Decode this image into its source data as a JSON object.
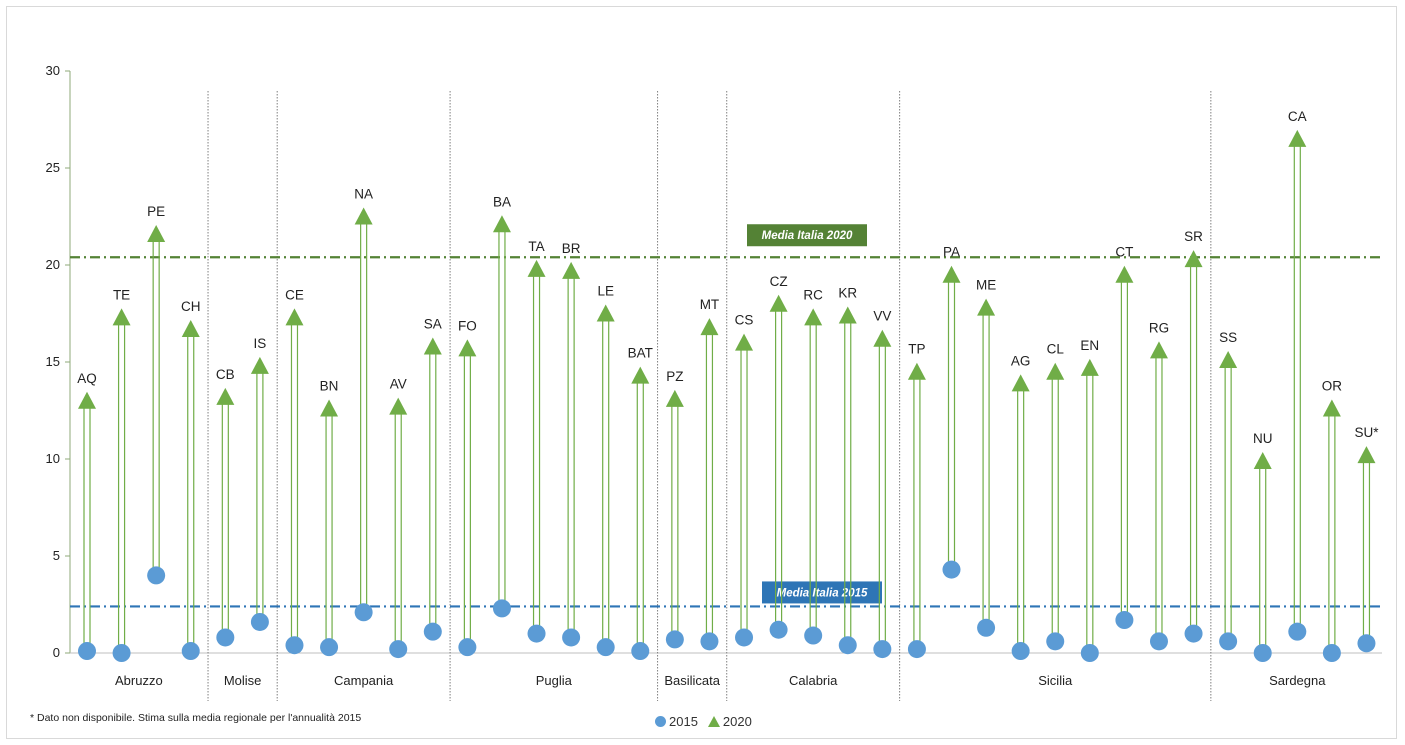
{
  "chart_data": {
    "type": "scatter",
    "ylim": [
      0,
      30
    ],
    "yticks": [
      0,
      5,
      10,
      15,
      20,
      25,
      30
    ],
    "grid": false,
    "legend_position": "bottom-center",
    "series": [
      {
        "name": "2015",
        "marker": "circle",
        "color": "#5b9bd5"
      },
      {
        "name": "2020",
        "marker": "triangle",
        "color": "#70ad47"
      }
    ],
    "points": [
      {
        "label": "AQ",
        "v2015": 0.1,
        "v2020": 13.0
      },
      {
        "label": "TE",
        "v2015": 0.0,
        "v2020": 17.3
      },
      {
        "label": "PE",
        "v2015": 4.0,
        "v2020": 21.6
      },
      {
        "label": "CH",
        "v2015": 0.1,
        "v2020": 16.7
      },
      {
        "label": "CB",
        "v2015": 0.8,
        "v2020": 13.2
      },
      {
        "label": "IS",
        "v2015": 1.6,
        "v2020": 14.8
      },
      {
        "label": "CE",
        "v2015": 0.4,
        "v2020": 17.3
      },
      {
        "label": "BN",
        "v2015": 0.3,
        "v2020": 12.6
      },
      {
        "label": "NA",
        "v2015": 2.1,
        "v2020": 22.5
      },
      {
        "label": "AV",
        "v2015": 0.2,
        "v2020": 12.7
      },
      {
        "label": "SA",
        "v2015": 1.1,
        "v2020": 15.8
      },
      {
        "label": "FO",
        "v2015": 0.3,
        "v2020": 15.7
      },
      {
        "label": "BA",
        "v2015": 2.3,
        "v2020": 22.1
      },
      {
        "label": "TA",
        "v2015": 1.0,
        "v2020": 19.8
      },
      {
        "label": "BR",
        "v2015": 0.8,
        "v2020": 19.7
      },
      {
        "label": "LE",
        "v2015": 0.3,
        "v2020": 17.5
      },
      {
        "label": "BAT",
        "v2015": 0.1,
        "v2020": 14.3
      },
      {
        "label": "PZ",
        "v2015": 0.7,
        "v2020": 13.1
      },
      {
        "label": "MT",
        "v2015": 0.6,
        "v2020": 16.8
      },
      {
        "label": "CS",
        "v2015": 0.8,
        "v2020": 16.0
      },
      {
        "label": "CZ",
        "v2015": 1.2,
        "v2020": 18.0
      },
      {
        "label": "RC",
        "v2015": 0.9,
        "v2020": 17.3
      },
      {
        "label": "KR",
        "v2015": 0.4,
        "v2020": 17.4
      },
      {
        "label": "VV",
        "v2015": 0.2,
        "v2020": 16.2
      },
      {
        "label": "TP",
        "v2015": 0.2,
        "v2020": 14.5
      },
      {
        "label": "PA",
        "v2015": 4.3,
        "v2020": 19.5
      },
      {
        "label": "ME",
        "v2015": 1.3,
        "v2020": 17.8
      },
      {
        "label": "AG",
        "v2015": 0.1,
        "v2020": 13.9
      },
      {
        "label": "CL",
        "v2015": 0.6,
        "v2020": 14.5
      },
      {
        "label": "EN",
        "v2015": 0.0,
        "v2020": 14.7
      },
      {
        "label": "CT",
        "v2015": 1.7,
        "v2020": 19.5
      },
      {
        "label": "RG",
        "v2015": 0.6,
        "v2020": 15.6
      },
      {
        "label": "SR",
        "v2015": 1.0,
        "v2020": 20.3
      },
      {
        "label": "SS",
        "v2015": 0.6,
        "v2020": 15.1
      },
      {
        "label": "NU",
        "v2015": 0.0,
        "v2020": 9.9
      },
      {
        "label": "CA",
        "v2015": 1.1,
        "v2020": 26.5
      },
      {
        "label": "OR",
        "v2015": 0.0,
        "v2020": 12.6
      },
      {
        "label": "SU*",
        "v2015": 0.5,
        "v2020": 10.2
      }
    ],
    "regions": [
      {
        "name": "Abruzzo",
        "count": 4
      },
      {
        "name": "Molise",
        "count": 2
      },
      {
        "name": "Campania",
        "count": 5
      },
      {
        "name": "Puglia",
        "count": 6
      },
      {
        "name": "Basilicata",
        "count": 2
      },
      {
        "name": "Calabria",
        "count": 5
      },
      {
        "name": "Sicilia",
        "count": 9
      },
      {
        "name": "Sardegna",
        "count": 5
      }
    ],
    "reference_lines": [
      {
        "label": "Media Italia 2020",
        "value": 20.4,
        "color": "#548235"
      },
      {
        "label": "Media Italia 2015",
        "value": 2.4,
        "color": "#2e75b6"
      }
    ]
  },
  "footnote": "* Dato non disponibile. Stima sulla media regionale per l'annualità 2015",
  "legend": {
    "label_2015": "2015",
    "label_2020": "2020"
  },
  "colors": {
    "blue": "#5b9bd5",
    "green": "#70ad47",
    "avg2020": "#548235",
    "avg2015": "#2e75b6"
  }
}
